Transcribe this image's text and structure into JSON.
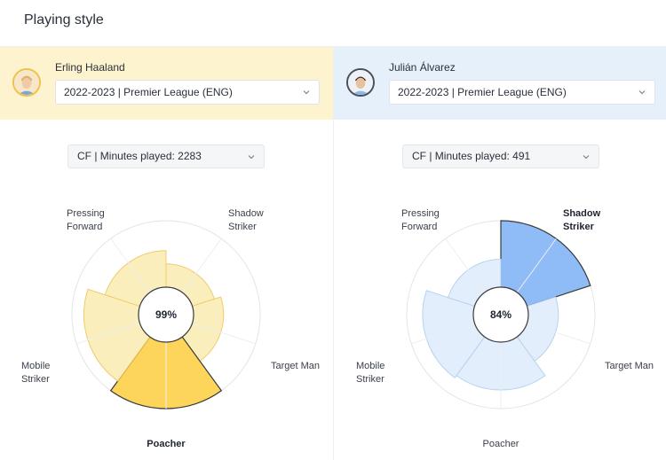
{
  "page": {
    "title": "Playing style"
  },
  "players": [
    {
      "name": "Erling Haaland",
      "season": "2022-2023 | Premier League (ENG)",
      "position_select": "CF | Minutes played: 2283",
      "center_value": "99%",
      "labels": {
        "pressing_forward": [
          "Pressing",
          "Forward"
        ],
        "shadow_striker": [
          "Shadow",
          "Striker"
        ],
        "target_man": "Target Man",
        "mobile_striker": [
          "Mobile",
          "Striker"
        ],
        "poacher": "Poacher"
      },
      "highlighted": "poacher",
      "style_levels": {
        "pressing_forward": 0.55,
        "shadow_striker": 0.35,
        "target_man": 0.45,
        "mobile_striker": 0.82,
        "poacher": 1.0
      },
      "colors": {
        "fill": "#fdd55a",
        "light": "#fbeebd",
        "stroke": "#f0cc6a",
        "outline": "#3b3b3b"
      }
    },
    {
      "name": "Julián Álvarez",
      "season": "2022-2023 | Premier League (ENG)",
      "position_select": "CF | Minutes played: 491",
      "center_value": "84%",
      "labels": {
        "pressing_forward": [
          "Pressing",
          "Forward"
        ],
        "shadow_striker": [
          "Shadow",
          "Striker"
        ],
        "target_man": "Target Man",
        "mobile_striker": [
          "Mobile",
          "Striker"
        ],
        "poacher": "Poacher"
      },
      "highlighted": "shadow_striker",
      "style_levels": {
        "pressing_forward": 0.42,
        "shadow_striker": 1.0,
        "target_man": 0.45,
        "mobile_striker": 0.76,
        "poacher": 0.72
      },
      "colors": {
        "fill": "#8fbcf6",
        "light": "#e3eefc",
        "stroke": "#b6d2f0",
        "outline": "#3b3b3b"
      }
    }
  ]
}
